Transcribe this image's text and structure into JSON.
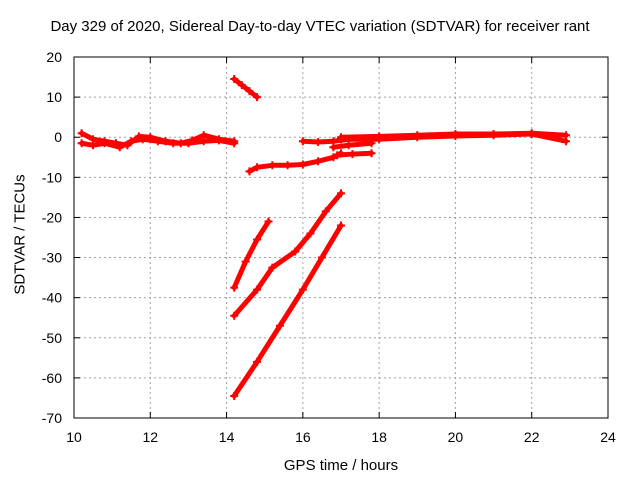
{
  "chart_data": {
    "type": "scatter",
    "title": "Day 329 of 2020, Sidereal Day-to-day VTEC variation (SDTVAR) for receiver rant",
    "xlabel": "GPS time / hours",
    "ylabel": "SDTVAR / TECUs",
    "xlim": [
      10,
      24
    ],
    "ylim": [
      -70,
      20
    ],
    "xticks": [
      "10",
      "12",
      "14",
      "16",
      "18",
      "20",
      "22",
      "24"
    ],
    "yticks": [
      "20",
      "10",
      "0",
      "-10",
      "-20",
      "-30",
      "-40",
      "-50",
      "-60",
      "-70"
    ],
    "grid": true,
    "legend": "none",
    "color": "#ff0000",
    "series": [
      {
        "x": [
          10.2,
          10.5,
          10.8,
          11.1,
          11.4,
          11.7,
          12.0,
          12.4,
          12.8,
          13.1,
          13.4,
          13.8,
          14.2
        ],
        "y": [
          1.0,
          -0.5,
          -1.0,
          -1.5,
          -2.0,
          0.2,
          0.0,
          -1.0,
          -1.5,
          -0.8,
          0.5,
          -0.5,
          -1.0
        ]
      },
      {
        "x": [
          10.2,
          10.5,
          10.8,
          11.2,
          11.5,
          11.8,
          12.2,
          12.6,
          13.0,
          13.4,
          13.8,
          14.2
        ],
        "y": [
          -1.5,
          -2.0,
          -1.5,
          -2.5,
          -1.0,
          -0.5,
          -1.0,
          -1.5,
          -1.5,
          -1.0,
          -0.8,
          -1.5
        ]
      },
      {
        "x": [
          14.2,
          14.4,
          14.6,
          14.8
        ],
        "y": [
          14.5,
          13.0,
          11.5,
          10.0
        ]
      },
      {
        "x": [
          14.6,
          14.8,
          15.2,
          15.6,
          16.0,
          16.4,
          16.8,
          17.0
        ],
        "y": [
          -8.5,
          -7.5,
          -7.0,
          -7.0,
          -6.8,
          -6.0,
          -5.0,
          -4.0
        ]
      },
      {
        "x": [
          16.0,
          16.4,
          16.8,
          17.2,
          17.8
        ],
        "y": [
          -1.0,
          -1.2,
          -1.0,
          -0.5,
          -0.2
        ]
      },
      {
        "x": [
          16.8,
          17.2,
          17.8
        ],
        "y": [
          -2.5,
          -2.0,
          -1.5
        ]
      },
      {
        "x": [
          16.9,
          17.3,
          17.8
        ],
        "y": [
          -4.5,
          -4.2,
          -4.0
        ]
      },
      {
        "x": [
          17.0,
          18.0,
          19.0,
          20.0,
          21.0,
          22.0,
          22.9
        ],
        "y": [
          0.0,
          0.2,
          0.5,
          0.8,
          0.8,
          1.0,
          0.5
        ]
      },
      {
        "x": [
          17.0,
          18.0,
          19.0,
          20.0,
          21.0,
          22.0,
          22.9
        ],
        "y": [
          -0.5,
          -0.5,
          0.0,
          0.3,
          0.5,
          0.8,
          -1.0
        ]
      },
      {
        "x": [
          14.2,
          14.5,
          14.8,
          15.1
        ],
        "y": [
          -37.5,
          -31.0,
          -25.5,
          -21.0
        ]
      },
      {
        "x": [
          14.2,
          14.8,
          15.2,
          15.8,
          16.2,
          16.6,
          17.0
        ],
        "y": [
          -44.5,
          -38.0,
          -32.5,
          -28.5,
          -24.0,
          -18.5,
          -14.0
        ]
      },
      {
        "x": [
          14.2,
          14.8,
          15.4,
          16.0,
          16.5,
          17.0
        ],
        "y": [
          -64.5,
          -56.0,
          -47.0,
          -38.0,
          -30.0,
          -22.0
        ]
      }
    ]
  }
}
